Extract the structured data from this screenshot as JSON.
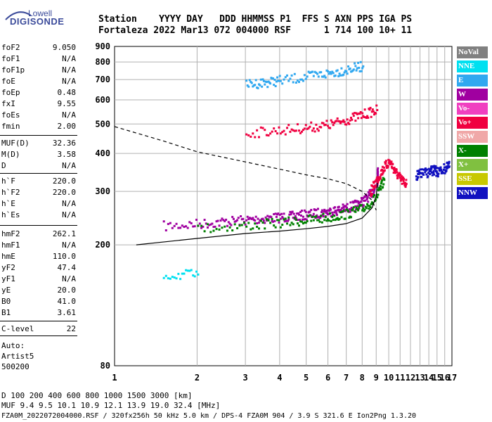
{
  "logo": {
    "line1": "Lowell",
    "line2": "DIGISONDE"
  },
  "header": {
    "line1": "Station    YYYY DAY   DDD HHMMSS P1  FFS S AXN PPS IGA PS",
    "line2": "Fortaleza 2022 Mar13 072 004000 RSF      1 714 100 10+ 11"
  },
  "params_group1": [
    {
      "label": "foF2",
      "value": "9.050"
    },
    {
      "label": "foF1",
      "value": "N/A"
    },
    {
      "label": "foF1p",
      "value": "N/A"
    },
    {
      "label": "foE",
      "value": "N/A"
    },
    {
      "label": "foEp",
      "value": "0.48"
    },
    {
      "label": "fxI",
      "value": "9.55"
    },
    {
      "label": "foEs",
      "value": "N/A"
    },
    {
      "label": "fmin",
      "value": "2.00"
    }
  ],
  "params_group2": [
    {
      "label": "MUF(D)",
      "value": "32.36"
    },
    {
      "label": "M(D)",
      "value": "3.58"
    },
    {
      "label": "D",
      "value": "N/A"
    }
  ],
  "params_group3": [
    {
      "label": "h`F",
      "value": "220.0"
    },
    {
      "label": "h`F2",
      "value": "220.0"
    },
    {
      "label": "h`E",
      "value": "N/A"
    },
    {
      "label": "h`Es",
      "value": "N/A"
    }
  ],
  "params_group4": [
    {
      "label": "hmF2",
      "value": "262.1"
    },
    {
      "label": "hmF1",
      "value": "N/A"
    },
    {
      "label": "hmE",
      "value": "110.0"
    },
    {
      "label": "yF2",
      "value": "47.4"
    },
    {
      "label": "yF1",
      "value": "N/A"
    },
    {
      "label": "yE",
      "value": "20.0"
    },
    {
      "label": "B0",
      "value": "41.0"
    },
    {
      "label": "B1",
      "value": "3.61"
    }
  ],
  "params_group5": [
    {
      "label": "C-level",
      "value": "22"
    }
  ],
  "autoscale": {
    "line1": "Auto:",
    "line2": "Artist5",
    "line3": "500200"
  },
  "legend": [
    {
      "label": "NoVal",
      "color": "#808080"
    },
    {
      "label": "NNE",
      "color": "#00e0f0"
    },
    {
      "label": "E",
      "color": "#30a8f0"
    },
    {
      "label": "W",
      "color": "#a000a0"
    },
    {
      "label": "Vo-",
      "color": "#f040c0"
    },
    {
      "label": "Vo+",
      "color": "#f00040"
    },
    {
      "label": "SSW",
      "color": "#f0a8a8"
    },
    {
      "label": "X-",
      "color": "#008000"
    },
    {
      "label": "X+",
      "color": "#80c040"
    },
    {
      "label": "SSE",
      "color": "#c8c800"
    },
    {
      "label": "NNW",
      "color": "#1010c0"
    }
  ],
  "footer": {
    "line1": "D     100  200  400  600  800 1000 1500 3000 [km]",
    "line2": "MUF   9.4  9.5 10.1 10.9 12.1 13.9 19.0 32.4 [MHz]",
    "line3": "FZA0M_2022072004000.RSF / 320fx256h 50 kHz 5.0 km / DPS-4 FZA0M 904 / 3.9 S 321.6 E   Ion2Png 1.3.20"
  },
  "chart_data": {
    "type": "scatter",
    "title": "",
    "xlabel": "",
    "ylabel": "",
    "xlim": [
      1,
      17
    ],
    "ylim": [
      80,
      900
    ],
    "x_ticks": [
      1,
      2,
      3,
      4,
      5,
      6,
      7,
      8,
      9,
      10,
      11,
      12,
      13,
      14,
      15,
      16,
      17
    ],
    "y_ticks": [
      80,
      200,
      300,
      400,
      500,
      600,
      700,
      800,
      900
    ],
    "grid": true,
    "y_scale": "log",
    "x_scale": "log",
    "series": [
      {
        "name": "O-trace F2",
        "color": "#a000a0",
        "points": [
          [
            1.5,
            232
          ],
          [
            2,
            236
          ],
          [
            2.5,
            240
          ],
          [
            3,
            243
          ],
          [
            3.5,
            246
          ],
          [
            4,
            248
          ],
          [
            4.5,
            250
          ],
          [
            5,
            253
          ],
          [
            5.5,
            256
          ],
          [
            6,
            259
          ],
          [
            6.5,
            262
          ],
          [
            7,
            266
          ],
          [
            7.5,
            272
          ],
          [
            8,
            280
          ],
          [
            8.5,
            295
          ],
          [
            9,
            320
          ],
          [
            9.05,
            360
          ]
        ]
      },
      {
        "name": "X-trace F2",
        "color": "#008000",
        "points": [
          [
            2,
            228
          ],
          [
            3,
            233
          ],
          [
            4,
            238
          ],
          [
            5,
            243
          ],
          [
            6,
            248
          ],
          [
            7,
            255
          ],
          [
            8,
            265
          ],
          [
            9,
            290
          ],
          [
            9.55,
            330
          ]
        ]
      },
      {
        "name": "Spread F",
        "color": "#f00040",
        "points": [
          [
            8.5,
            300
          ],
          [
            9,
            330
          ],
          [
            9.5,
            360
          ],
          [
            10,
            380
          ],
          [
            10.5,
            350
          ],
          [
            11,
            330
          ],
          [
            11.5,
            320
          ]
        ]
      },
      {
        "name": "Multiple echo 2F",
        "color": "#f00040",
        "points": [
          [
            3,
            470
          ],
          [
            4,
            480
          ],
          [
            5,
            490
          ],
          [
            6,
            500
          ],
          [
            7,
            520
          ],
          [
            8,
            540
          ],
          [
            9,
            560
          ]
        ]
      },
      {
        "name": "Multiple echo 3F",
        "color": "#30a8f0",
        "points": [
          [
            3,
            680
          ],
          [
            3.5,
            690
          ],
          [
            4,
            700
          ],
          [
            5,
            720
          ],
          [
            6,
            740
          ],
          [
            7,
            760
          ],
          [
            8,
            780
          ]
        ]
      },
      {
        "name": "Scattered echoes",
        "color": "#1010c0",
        "points": [
          [
            12.5,
            340
          ],
          [
            13,
            345
          ],
          [
            14,
            350
          ],
          [
            14.5,
            355
          ],
          [
            15,
            350
          ],
          [
            16,
            360
          ],
          [
            16.5,
            365
          ]
        ]
      },
      {
        "name": "Weak echo",
        "color": "#00e0f0",
        "points": [
          [
            1.5,
            160
          ],
          [
            2,
            161
          ]
        ]
      }
    ],
    "curves": [
      {
        "name": "Profile dashed",
        "style": "dashed",
        "points": [
          [
            1,
            490
          ],
          [
            1.5,
            440
          ],
          [
            2,
            405
          ],
          [
            3,
            375
          ],
          [
            4,
            355
          ],
          [
            5,
            340
          ],
          [
            6,
            330
          ],
          [
            7,
            318
          ],
          [
            8,
            300
          ],
          [
            8.7,
            280
          ],
          [
            9,
            260
          ]
        ]
      },
      {
        "name": "Profile solid",
        "style": "solid",
        "points": [
          [
            1.2,
            200
          ],
          [
            2,
            210
          ],
          [
            3,
            218
          ],
          [
            4,
            222
          ],
          [
            5,
            226
          ],
          [
            6,
            230
          ],
          [
            7,
            235
          ],
          [
            8,
            245
          ],
          [
            8.7,
            265
          ],
          [
            9,
            290
          ],
          [
            9.1,
            320
          ]
        ]
      }
    ]
  }
}
